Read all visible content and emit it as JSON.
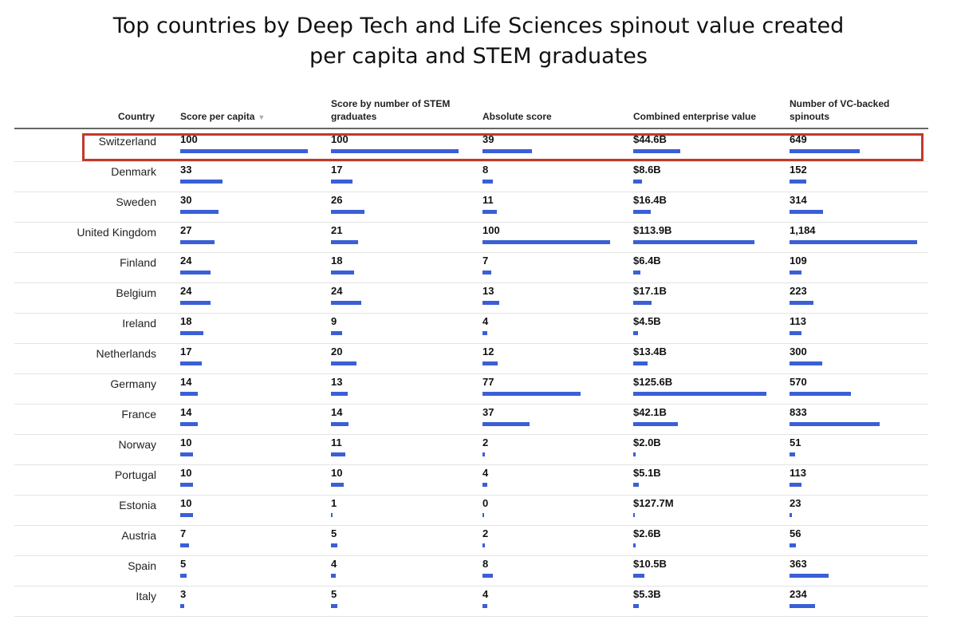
{
  "chart_data": {
    "type": "table",
    "title_lines": [
      "Top countries by Deep Tech and Life Sciences spinout value created",
      "per capita and STEM graduates"
    ],
    "columns": [
      "Country",
      "Score per capita",
      "Score by number of STEM graduates",
      "Absolute score",
      "Combined enterprise value",
      "Number of VC-backed spinouts"
    ],
    "sort_indicator": "▼",
    "highlighted_row": "Switzerland",
    "rows": [
      {
        "country": "Switzerland",
        "values": [
          "100",
          "100",
          "39",
          "$44.6B",
          "649"
        ],
        "bars": [
          100,
          100,
          39,
          44.6,
          649
        ]
      },
      {
        "country": "Denmark",
        "values": [
          "33",
          "17",
          "8",
          "$8.6B",
          "152"
        ],
        "bars": [
          33,
          17,
          8,
          8.6,
          152
        ]
      },
      {
        "country": "Sweden",
        "values": [
          "30",
          "26",
          "11",
          "$16.4B",
          "314"
        ],
        "bars": [
          30,
          26,
          11,
          16.4,
          314
        ]
      },
      {
        "country": "United Kingdom",
        "values": [
          "27",
          "21",
          "100",
          "$113.9B",
          "1,184"
        ],
        "bars": [
          27,
          21,
          100,
          113.9,
          1184
        ]
      },
      {
        "country": "Finland",
        "values": [
          "24",
          "18",
          "7",
          "$6.4B",
          "109"
        ],
        "bars": [
          24,
          18,
          7,
          6.4,
          109
        ]
      },
      {
        "country": "Belgium",
        "values": [
          "24",
          "24",
          "13",
          "$17.1B",
          "223"
        ],
        "bars": [
          24,
          24,
          13,
          17.1,
          223
        ]
      },
      {
        "country": "Ireland",
        "values": [
          "18",
          "9",
          "4",
          "$4.5B",
          "113"
        ],
        "bars": [
          18,
          9,
          4,
          4.5,
          113
        ]
      },
      {
        "country": "Netherlands",
        "values": [
          "17",
          "20",
          "12",
          "$13.4B",
          "300"
        ],
        "bars": [
          17,
          20,
          12,
          13.4,
          300
        ]
      },
      {
        "country": "Germany",
        "values": [
          "14",
          "13",
          "77",
          "$125.6B",
          "570"
        ],
        "bars": [
          14,
          13,
          77,
          125.6,
          570
        ]
      },
      {
        "country": "France",
        "values": [
          "14",
          "14",
          "37",
          "$42.1B",
          "833"
        ],
        "bars": [
          14,
          14,
          37,
          42.1,
          833
        ]
      },
      {
        "country": "Norway",
        "values": [
          "10",
          "11",
          "2",
          "$2.0B",
          "51"
        ],
        "bars": [
          10,
          11,
          2,
          2.0,
          51
        ]
      },
      {
        "country": "Portugal",
        "values": [
          "10",
          "10",
          "4",
          "$5.1B",
          "113"
        ],
        "bars": [
          10,
          10,
          4,
          5.1,
          113
        ]
      },
      {
        "country": "Estonia",
        "values": [
          "10",
          "1",
          "0",
          "$127.7M",
          "23"
        ],
        "bars": [
          10,
          1,
          0,
          0.1277,
          23
        ]
      },
      {
        "country": "Austria",
        "values": [
          "7",
          "5",
          "2",
          "$2.6B",
          "56"
        ],
        "bars": [
          7,
          5,
          2,
          2.6,
          56
        ]
      },
      {
        "country": "Spain",
        "values": [
          "5",
          "4",
          "8",
          "$10.5B",
          "363"
        ],
        "bars": [
          5,
          4,
          8,
          10.5,
          363
        ]
      },
      {
        "country": "Italy",
        "values": [
          "3",
          "5",
          "4",
          "$5.3B",
          "234"
        ],
        "bars": [
          3,
          5,
          4,
          5.3,
          234
        ]
      }
    ],
    "column_max": [
      100,
      100,
      100,
      127.7,
      1184
    ],
    "bar_color": "#3a5fd6",
    "highlight_color": "#c0392b"
  }
}
